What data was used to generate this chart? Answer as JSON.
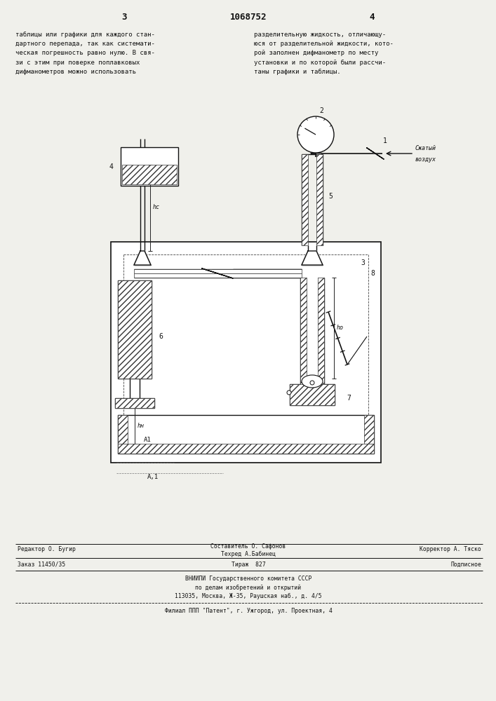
{
  "page_width": 7.07,
  "page_height": 10.0,
  "bg_color": "#f0f0eb",
  "header": {
    "left_num": "3",
    "center_num": "1068752",
    "right_num": "4"
  },
  "left_text": "таблицы или графики для каждого стан-\nдартного перепада, так как системати-\nческая погрешность равно нулю. В свя-\nзи с этим при поверке поплавковых\nдифманометров можно использовать",
  "right_text": "разделительную жидкость, отличающу-\nюся от разделительной жидкости, кото-\nрой заполнен дифманометр по месту\nустановки и по которой были рассчи-\nтаны графики и таблицы.",
  "footer": {
    "line1_left": "Редактор О. Бугир",
    "line1_center": "Составитель О. Сафонов\nТехред А.Бабинец",
    "line1_right": "Корректор А. Тяско",
    "line2_left": "Заказ 11450/35",
    "line2_center": "Тираж  827",
    "line2_right": "Подписное",
    "line3": "ВНИИПИ Государственного комитета СССР\nпо делам изобретений и открытий\n113035, Москва, Ж-35, Раушская наб., д. 4/5",
    "line4": "Филиал ППП \"Патент\", г. Ужгород, ул. Проектная, 4"
  }
}
